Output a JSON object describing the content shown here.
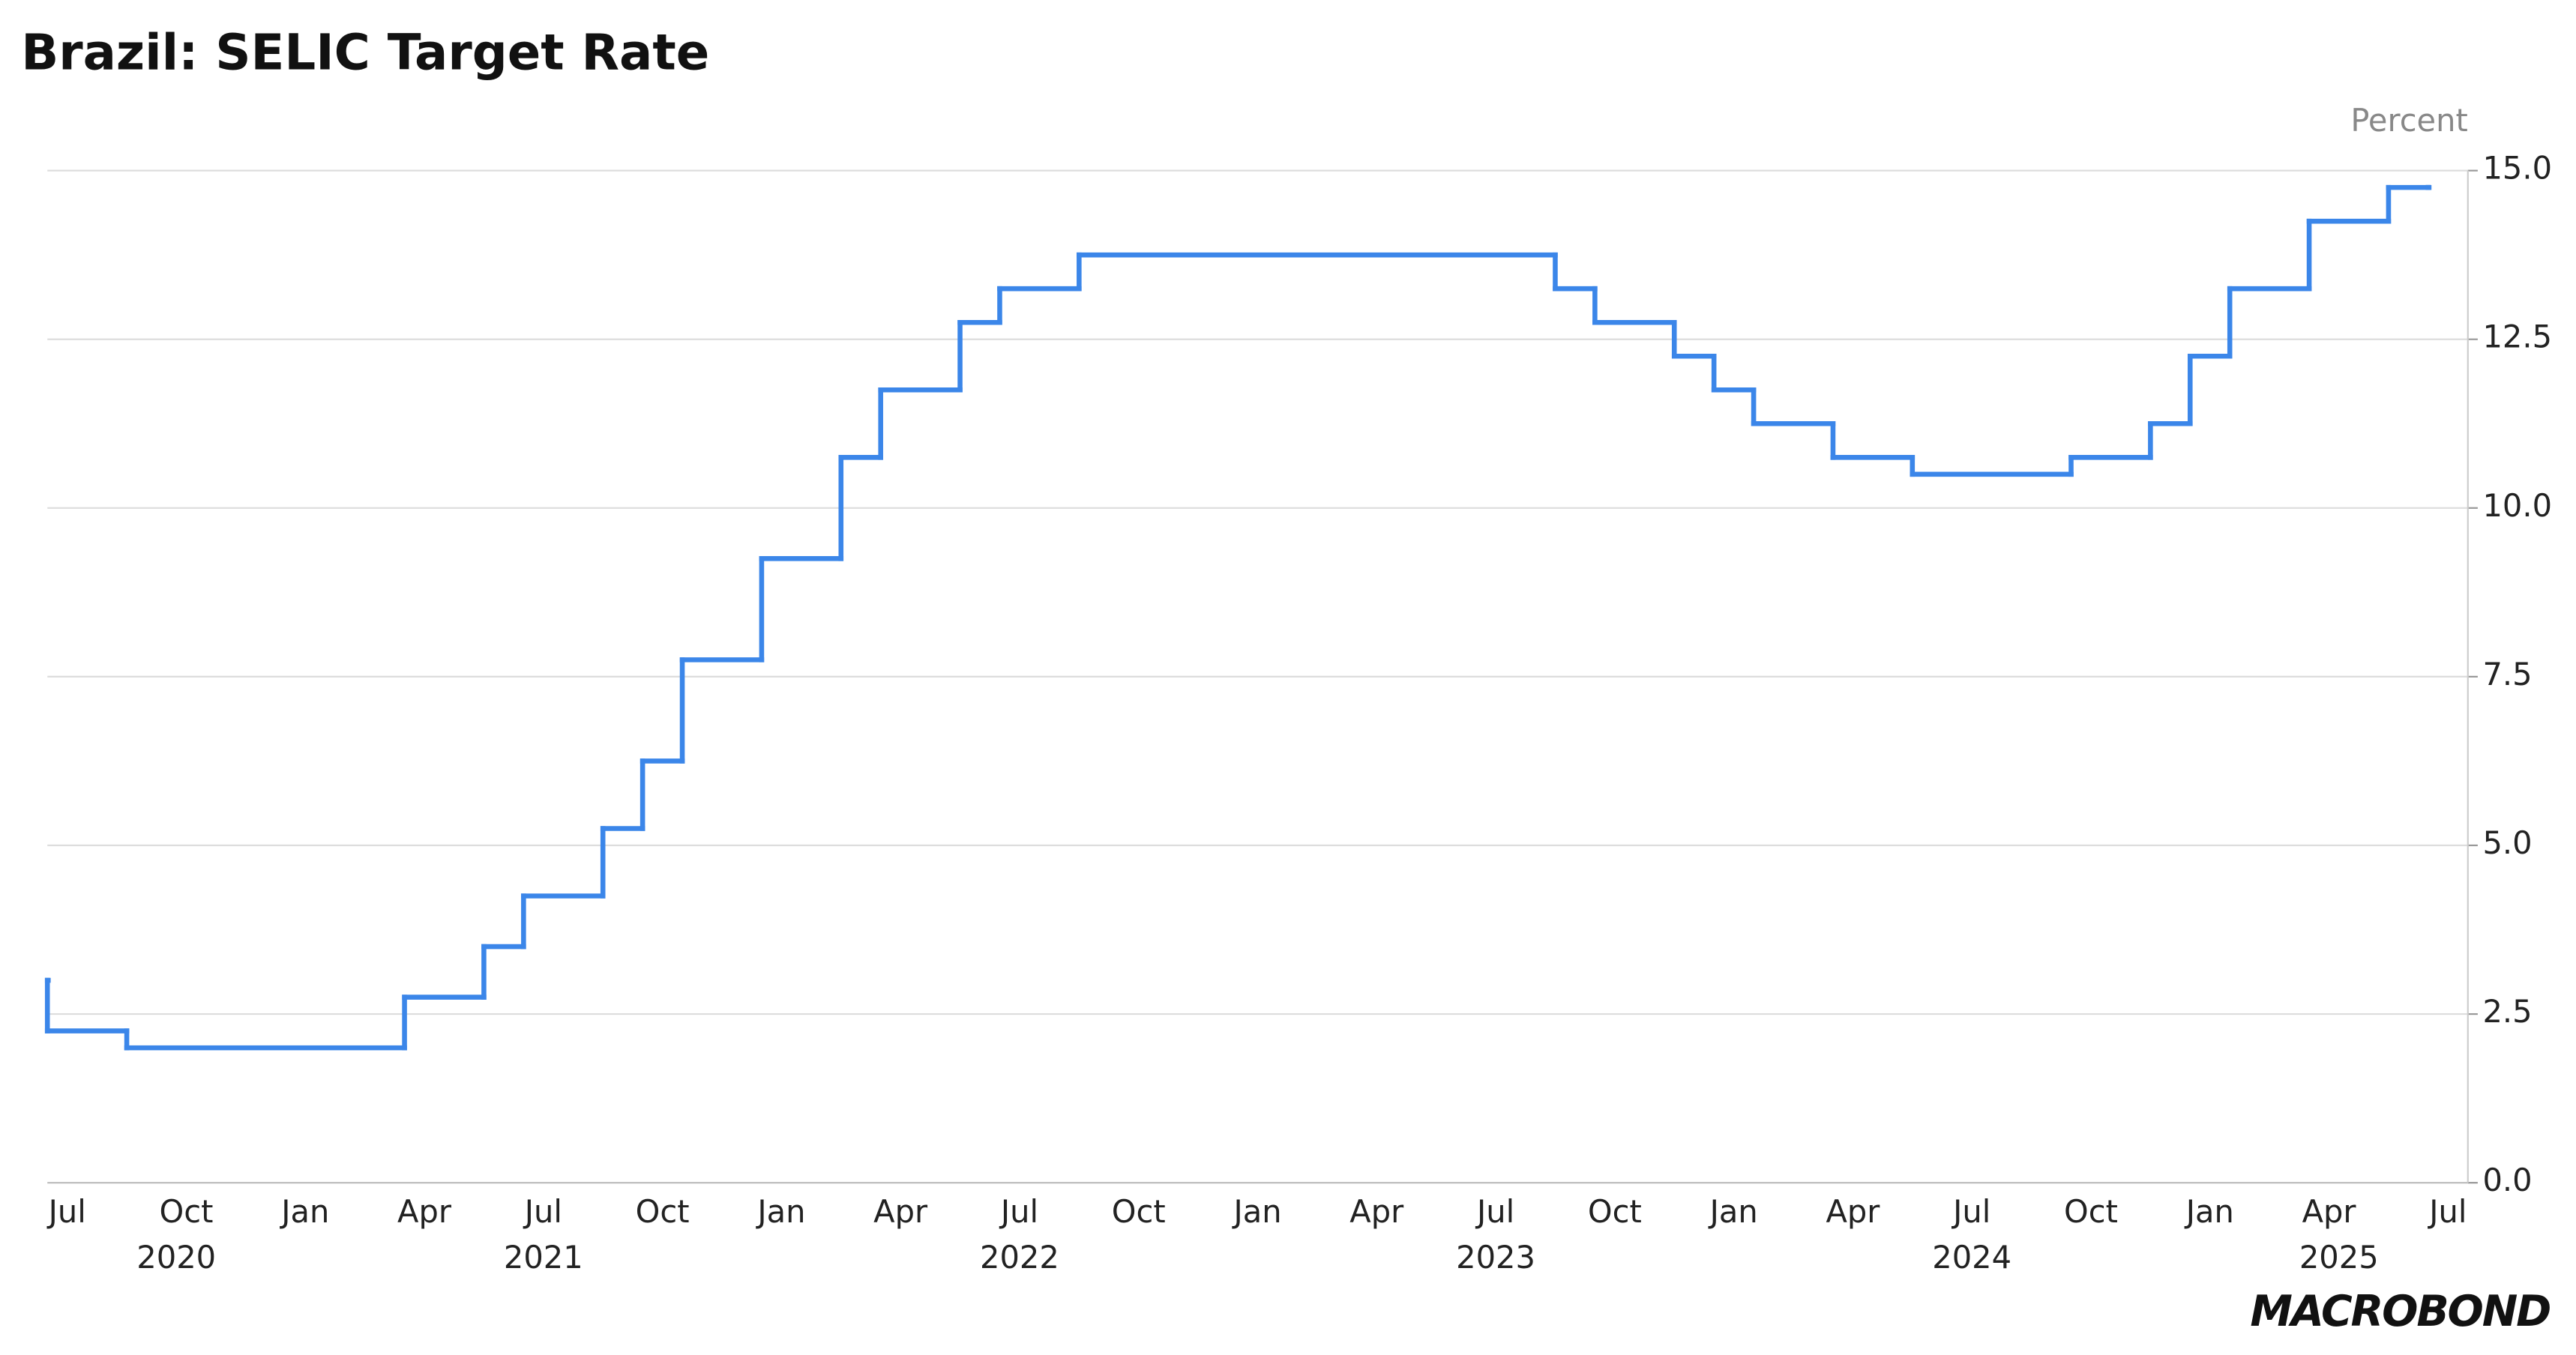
{
  "chart_data": {
    "type": "step-line",
    "title": "Brazil: SELIC Target Rate",
    "y_unit": "Percent",
    "source_logo": "MACROBOND",
    "x": [
      "2020-06",
      "2020-06",
      "2020-08",
      "2021-03",
      "2021-05",
      "2021-06",
      "2021-08",
      "2021-09",
      "2021-10",
      "2021-12",
      "2022-02",
      "2022-03",
      "2022-05",
      "2022-06",
      "2022-08",
      "2023-08",
      "2023-09",
      "2023-11",
      "2023-12",
      "2024-01",
      "2024-03",
      "2024-05",
      "2024-09",
      "2024-11",
      "2024-12",
      "2025-01",
      "2025-03",
      "2025-05",
      "2025-06"
    ],
    "series": [
      {
        "color": "#3b86e9",
        "values": [
          3.0,
          2.25,
          2.0,
          2.75,
          3.5,
          4.25,
          5.25,
          6.25,
          7.75,
          9.25,
          10.75,
          11.75,
          12.75,
          13.25,
          13.75,
          13.25,
          12.75,
          12.25,
          11.75,
          11.25,
          10.75,
          10.5,
          10.75,
          11.25,
          12.25,
          13.25,
          14.25,
          14.75,
          14.75
        ]
      }
    ],
    "xlim": [
      "2020-06",
      "2025-07"
    ],
    "xticks": [
      {
        "value": "2020-07",
        "label": "Jul"
      },
      {
        "value": "2020-10",
        "label": "Oct"
      },
      {
        "value": "2021-01",
        "label": "Jan"
      },
      {
        "value": "2021-04",
        "label": "Apr"
      },
      {
        "value": "2021-07",
        "label": "Jul"
      },
      {
        "value": "2021-10",
        "label": "Oct"
      },
      {
        "value": "2022-01",
        "label": "Jan"
      },
      {
        "value": "2022-04",
        "label": "Apr"
      },
      {
        "value": "2022-07",
        "label": "Jul"
      },
      {
        "value": "2022-10",
        "label": "Oct"
      },
      {
        "value": "2023-01",
        "label": "Jan"
      },
      {
        "value": "2023-04",
        "label": "Apr"
      },
      {
        "value": "2023-07",
        "label": "Jul"
      },
      {
        "value": "2023-10",
        "label": "Oct"
      },
      {
        "value": "2024-01",
        "label": "Jan"
      },
      {
        "value": "2024-04",
        "label": "Apr"
      },
      {
        "value": "2024-07",
        "label": "Jul"
      },
      {
        "value": "2024-10",
        "label": "Oct"
      },
      {
        "value": "2025-01",
        "label": "Jan"
      },
      {
        "value": "2025-04",
        "label": "Apr"
      },
      {
        "value": "2025-07",
        "label": "Jul"
      }
    ],
    "xticks_years": [
      2020,
      2021,
      2022,
      2023,
      2024,
      2025
    ],
    "ylim": [
      0,
      15
    ],
    "yticks": [
      {
        "value": 0,
        "label": "0.0"
      },
      {
        "value": 2.5,
        "label": "2.5"
      },
      {
        "value": 5,
        "label": "5.0"
      },
      {
        "value": 7.5,
        "label": "7.5"
      },
      {
        "value": 10,
        "label": "10.0"
      },
      {
        "value": 12.5,
        "label": "12.5"
      },
      {
        "value": 15,
        "label": "15.0"
      }
    ],
    "grid": true
  }
}
